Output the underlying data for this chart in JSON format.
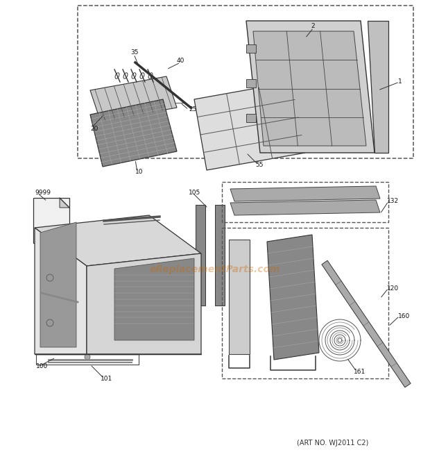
{
  "background_color": "#ffffff",
  "watermark_text": "eReplacementParts.com",
  "watermark_color": "#cc6600",
  "watermark_alpha": 0.35,
  "art_no_text": "(ART NO. WJ2011 C2)",
  "art_no_fontsize": 7,
  "fig_width": 6.2,
  "fig_height": 6.61,
  "dpi": 100
}
